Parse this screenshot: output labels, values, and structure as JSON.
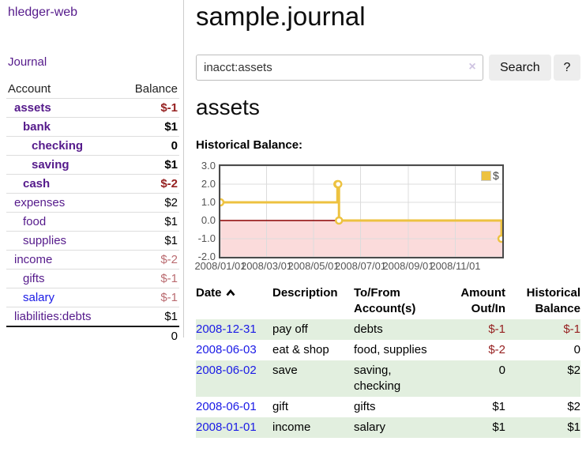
{
  "sidebar": {
    "app_title": "hledger-web",
    "nav_journal": "Journal",
    "accounts": {
      "header_account": "Account",
      "header_balance": "Balance",
      "rows": [
        {
          "name": "assets",
          "balance": "$-1"
        },
        {
          "name": "bank",
          "balance": "$1"
        },
        {
          "name": "checking",
          "balance": "0"
        },
        {
          "name": "saving",
          "balance": "$1"
        },
        {
          "name": "cash",
          "balance": "$-2"
        },
        {
          "name": "expenses",
          "balance": "$2"
        },
        {
          "name": "food",
          "balance": "$1"
        },
        {
          "name": "supplies",
          "balance": "$1"
        },
        {
          "name": "income",
          "balance": "$-2"
        },
        {
          "name": "gifts",
          "balance": "$-1"
        },
        {
          "name": "salary",
          "balance": "$-1"
        },
        {
          "name": "liabilities:debts",
          "balance": "$1"
        }
      ],
      "total": "0"
    }
  },
  "header": {
    "title": "sample.journal"
  },
  "search": {
    "value": "inacct:assets",
    "clear_icon": "×",
    "button_label": "Search",
    "help_label": "?"
  },
  "main": {
    "account_heading": "assets",
    "chart_label": "Historical Balance:"
  },
  "chart_data": {
    "type": "line",
    "title": "Historical Balance",
    "style": "step",
    "xrange": [
      "2008-01-01",
      "2009-01-01"
    ],
    "ylim": [
      -2,
      3
    ],
    "grid": true,
    "legend_position": "top-right",
    "zero_line_color": "#8b0000",
    "negative_region_color": "#fbdbdb",
    "series": [
      {
        "name": "$",
        "color": "#edc240",
        "points": [
          [
            "2008-01-01",
            1
          ],
          [
            "2008-06-01",
            2
          ],
          [
            "2008-06-02",
            2
          ],
          [
            "2008-06-03",
            0
          ],
          [
            "2008-12-31",
            -1
          ]
        ]
      }
    ],
    "yticks": [
      {
        "v": 3,
        "label": "3.0"
      },
      {
        "v": 2,
        "label": "2.0"
      },
      {
        "v": 1,
        "label": "1.0"
      },
      {
        "v": 0,
        "label": "0.0"
      },
      {
        "v": -1,
        "label": "-1.0"
      },
      {
        "v": -2,
        "label": "-2.0"
      }
    ],
    "xticks": [
      {
        "d": "2008-01-01",
        "label": "2008/01/01"
      },
      {
        "d": "2008-03-01",
        "label": "2008/03/01"
      },
      {
        "d": "2008-05-01",
        "label": "2008/05/01"
      },
      {
        "d": "2008-07-01",
        "label": "2008/07/01"
      },
      {
        "d": "2008-09-01",
        "label": "2008/09/01"
      },
      {
        "d": "2008-11-01",
        "label": "2008/11/01"
      }
    ]
  },
  "register": {
    "headers": {
      "date": "Date",
      "description": "Description",
      "accounts": "To/From Account(s)",
      "amount": "Amount Out/In",
      "balance": "Historical Balance"
    },
    "rows": [
      {
        "date": "2008-12-31",
        "description": "pay off",
        "accounts": "debts",
        "amount": "$-1",
        "balance": "$-1"
      },
      {
        "date": "2008-06-03",
        "description": "eat & shop",
        "accounts": "food, supplies",
        "amount": "$-2",
        "balance": "0"
      },
      {
        "date": "2008-06-02",
        "description": "save",
        "accounts": "saving, checking",
        "amount": "0",
        "balance": "$2"
      },
      {
        "date": "2008-06-01",
        "description": "gift",
        "accounts": "gifts",
        "amount": "$1",
        "balance": "$2"
      },
      {
        "date": "2008-01-01",
        "description": "income",
        "accounts": "salary",
        "amount": "$1",
        "balance": "$1"
      }
    ]
  }
}
